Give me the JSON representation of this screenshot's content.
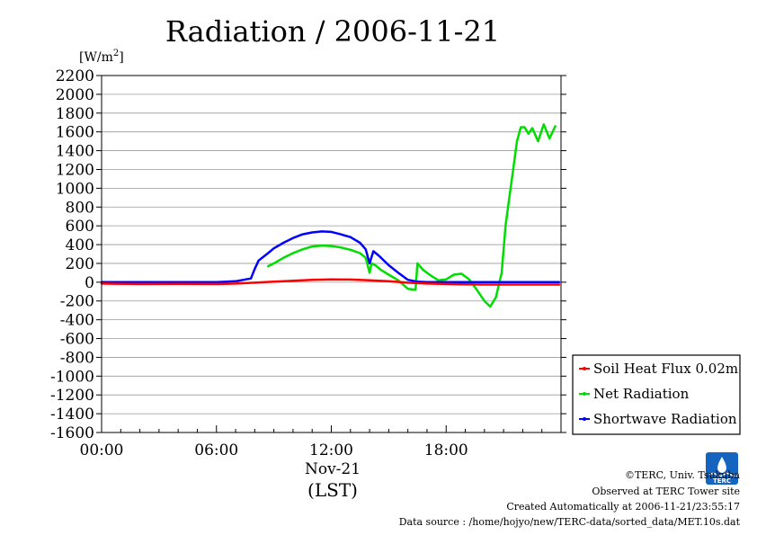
{
  "chart_data": {
    "type": "line",
    "title": "Radiation / 2006-11-21",
    "ylabel": "[W/m",
    "ylabel_sup": "2",
    "ylabel_close": "]",
    "xlabel": "(LST)",
    "x_date_label": "Nov-21",
    "ylim": [
      -1600,
      2200
    ],
    "yticks": [
      -1600,
      -1400,
      -1200,
      -1000,
      -800,
      -600,
      -400,
      -200,
      0,
      200,
      400,
      600,
      800,
      1000,
      1200,
      1400,
      1600,
      1800,
      2000,
      2200
    ],
    "xlim": [
      0,
      24
    ],
    "xticks": [
      {
        "x": 0,
        "label": "00:00"
      },
      {
        "x": 6,
        "label": "06:00"
      },
      {
        "x": 12,
        "label": "12:00"
      },
      {
        "x": 18,
        "label": "18:00"
      }
    ],
    "grid": "horizontal",
    "legend_position": "bottom-right",
    "series": [
      {
        "name": "Soil Heat Flux 0.02m",
        "color": "#ff0000",
        "x": [
          0,
          2,
          4,
          6,
          7,
          8,
          9,
          10,
          11,
          12,
          13,
          14,
          15,
          16,
          17,
          18,
          20,
          22,
          23.9
        ],
        "y": [
          -15,
          -20,
          -18,
          -20,
          -15,
          -5,
          5,
          15,
          25,
          30,
          28,
          20,
          10,
          -5,
          -15,
          -20,
          -25,
          -25,
          -25
        ]
      },
      {
        "name": "Net Radiation",
        "color": "#00dd00",
        "x": [
          8.7,
          9,
          9.5,
          10,
          10.5,
          11,
          11.5,
          12,
          12.5,
          13,
          13.5,
          13.8,
          14,
          14.1,
          14.3,
          14.6,
          15,
          15.5,
          16,
          16.4,
          16.5,
          16.8,
          17.2,
          17.6,
          18,
          18.4,
          18.8,
          19.2,
          19.6,
          20,
          20.3,
          20.6,
          20.9,
          21.1,
          21.3,
          21.5,
          21.7,
          21.9,
          22.1,
          22.3,
          22.5,
          22.8,
          23.1,
          23.4,
          23.7
        ],
        "y": [
          170,
          200,
          260,
          310,
          350,
          380,
          390,
          385,
          370,
          345,
          310,
          260,
          100,
          200,
          180,
          130,
          80,
          20,
          -70,
          -80,
          200,
          130,
          70,
          20,
          30,
          80,
          90,
          30,
          -80,
          -200,
          -260,
          -160,
          100,
          600,
          900,
          1200,
          1500,
          1650,
          1650,
          1580,
          1640,
          1500,
          1680,
          1530,
          1660
        ]
      },
      {
        "name": "Shortwave Radiation",
        "color": "#0000ff",
        "x": [
          0,
          6,
          7,
          7.8,
          8,
          8.2,
          8.7,
          9,
          9.5,
          10,
          10.5,
          11,
          11.5,
          12,
          12.5,
          13,
          13.5,
          13.8,
          14,
          14.2,
          14.5,
          15,
          15.5,
          16,
          16.5,
          17,
          18,
          20,
          22,
          23.9
        ],
        "y": [
          0,
          0,
          10,
          40,
          140,
          230,
          310,
          360,
          420,
          470,
          510,
          530,
          540,
          535,
          510,
          480,
          420,
          350,
          200,
          330,
          280,
          180,
          100,
          25,
          5,
          0,
          0,
          0,
          0,
          0
        ]
      }
    ]
  },
  "footer": {
    "logo_text": "TERC",
    "copyright": "©TERC, Univ. Tsukuba",
    "observed": "Observed at TERC Tower site",
    "created": "Created Automatically at 2006-11-21/23:55:17",
    "source": "Data source : /home/hojyo/new/TERC-data/sorted_data/MET.10s.dat"
  }
}
